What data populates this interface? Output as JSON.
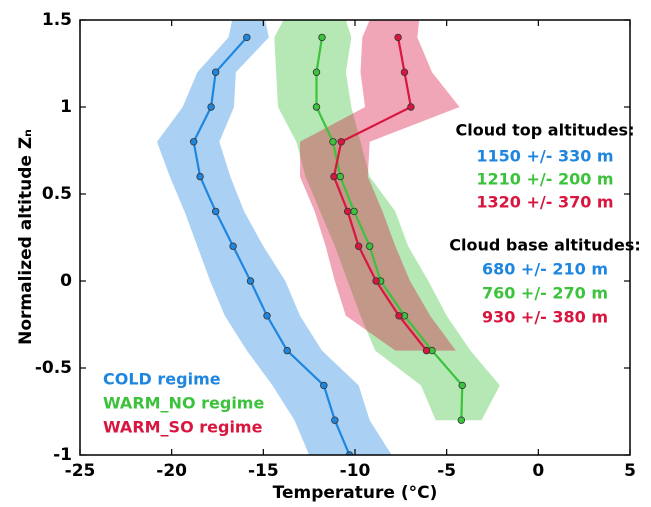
{
  "chart_data": {
    "type": "line",
    "x_label": "Temperature (°C)",
    "y_label": "Normalized altitude Zₙ",
    "xlim": [
      -25,
      5
    ],
    "ylim": [
      -1,
      1.5
    ],
    "xticks": [
      -25,
      -20,
      -15,
      -10,
      -5,
      0,
      5
    ],
    "yticks": [
      -1,
      -0.5,
      0,
      0.5,
      1,
      1.5
    ],
    "grid": false,
    "legend": "lower left",
    "series": [
      {
        "name": "COLD regime",
        "color": "#1f86e0",
        "x": [
          -15.9,
          -17.6,
          -17.85,
          -18.8,
          -18.45,
          -17.6,
          -16.65,
          -15.7,
          -14.8,
          -13.7,
          -11.7,
          -11.1,
          -10.3
        ],
        "y": [
          1.4,
          1.2,
          1.0,
          0.8,
          0.6,
          0.4,
          0.2,
          0,
          -0.2,
          -0.4,
          -0.6,
          -0.8,
          -1.0
        ],
        "band": {
          "y": [
            1.5,
            1.4,
            1.2,
            1.0,
            0.8,
            0.6,
            0.4,
            0.2,
            0,
            -0.2,
            -0.4,
            -0.6,
            -0.8,
            -1.0
          ],
          "low": [
            -16.7,
            -16.9,
            -18.6,
            -19.4,
            -20.8,
            -20.1,
            -19.3,
            -18.6,
            -17.9,
            -17.1,
            -15.9,
            -14.5,
            -13.3,
            -12.5
          ],
          "high": [
            -14.9,
            -14.7,
            -16.5,
            -16.6,
            -17.4,
            -16.8,
            -16.05,
            -15.0,
            -13.8,
            -13.0,
            -11.8,
            -9.8,
            -9.2,
            -8.0
          ]
        }
      },
      {
        "name": "WARM_NO regime",
        "color": "#3cc23c",
        "x": [
          -11.8,
          -12.1,
          -12.1,
          -11.2,
          -10.8,
          -10.05,
          -9.2,
          -8.6,
          -7.3,
          -5.8,
          -4.15,
          -4.2
        ],
        "y": [
          1.4,
          1.2,
          1.0,
          0.8,
          0.6,
          0.4,
          0.2,
          0,
          -0.2,
          -0.4,
          -0.6,
          -0.8
        ],
        "band": {
          "y": [
            1.5,
            1.4,
            1.2,
            1.0,
            0.8,
            0.6,
            0.4,
            0.2,
            0,
            -0.2,
            -0.4,
            -0.6,
            -0.8
          ],
          "low": [
            -13.9,
            -14.4,
            -14.3,
            -14.2,
            -13.2,
            -12.7,
            -11.9,
            -11.1,
            -10.4,
            -9.7,
            -8.9,
            -6.4,
            -5.6
          ],
          "high": [
            -10.5,
            -10.2,
            -10.5,
            -10.2,
            -9.7,
            -9.2,
            -7.8,
            -7.1,
            -6.0,
            -5.0,
            -3.7,
            -2.1,
            -3.1
          ]
        }
      },
      {
        "name": "WARM_SO regime",
        "color": "#d8163f",
        "x": [
          -7.65,
          -7.3,
          -6.95,
          -10.75,
          -11.15,
          -10.4,
          -9.8,
          -8.85,
          -7.6,
          -6.1
        ],
        "y": [
          1.4,
          1.2,
          1.0,
          0.8,
          0.6,
          0.4,
          0.2,
          0,
          -0.2,
          -0.4
        ],
        "band": {
          "y": [
            1.5,
            1.4,
            1.2,
            1.0,
            0.8,
            0.6,
            0.4,
            0.2,
            0,
            -0.2,
            -0.4
          ],
          "low": [
            -9.2,
            -9.6,
            -9.7,
            -9.45,
            -13.0,
            -13.0,
            -12.2,
            -11.6,
            -11.1,
            -10.5,
            -7.8
          ],
          "high": [
            -6.5,
            -6.6,
            -5.8,
            -4.3,
            -9.2,
            -9.3,
            -8.5,
            -7.8,
            -7.0,
            -5.9,
            -4.5
          ]
        }
      }
    ],
    "annotations": [
      {
        "text": "Cloud top altitudes:",
        "color": "#000000"
      },
      {
        "text": "1150 +/- 330 m",
        "color": "#1f86e0"
      },
      {
        "text": "1210 +/- 200 m",
        "color": "#3cc23c"
      },
      {
        "text": "1320 +/- 370 m",
        "color": "#d8163f"
      },
      {
        "text": "Cloud base altitudes:",
        "color": "#000000"
      },
      {
        "text": "680 +/- 210 m",
        "color": "#1f86e0"
      },
      {
        "text": "760 +/- 270 m",
        "color": "#3cc23c"
      },
      {
        "text": "930 +/- 380 m",
        "color": "#d8163f"
      }
    ]
  }
}
